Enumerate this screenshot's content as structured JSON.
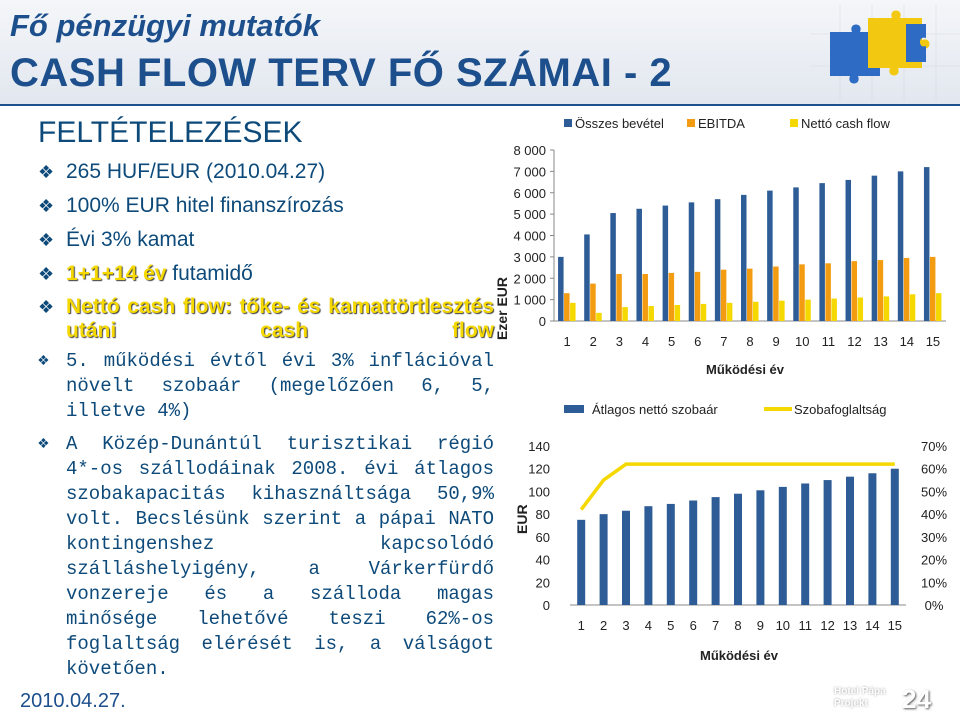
{
  "header": {
    "subtitle": "Fő pénzügyi mutatók",
    "title": "CASH FLOW TERV FŐ SZÁMAI - 2"
  },
  "left": {
    "section_head": "FELTÉTELEZÉSEK",
    "bullets": {
      "b1": "265 HUF/EUR (2010.04.27)",
      "b2": "100% EUR hitel finanszírozás",
      "b3": "Évi 3% kamat",
      "b4_highlight": "1+1+14 év",
      "b4_rest": " futamidő",
      "b5": "Nettó cash flow: tőke- és kamattörtlesztés utáni cash flow",
      "b6": "5. működési évtől évi 3% inflációval növelt szobaár (megelőzően 6, 5, illetve 4%)",
      "b7": "A Közép-Dunántúl turisztikai régió 4*-os szállodáinak 2008. évi átlagos szobakapacitás kihasználtsága 50,9% volt. Becslésünk szerint a pápai NATO kontingenshez kapcsolódó szálláshelyigény, a Várkerfürdő vonzereje és a szálloda magas minősége lehetővé teszi 62%-os foglaltság elérését is, a válságot követően."
    }
  },
  "footer": {
    "date": "2010.04.27.",
    "logo_line1": "Hotel Pápa",
    "logo_line2": "Projekt",
    "page": "24"
  },
  "colors": {
    "title_blue": "#1c4f8c",
    "text_blue": "#0d4a7a",
    "bar_blue": "#2e5c96",
    "ebitda_orange": "#f39c12",
    "ncf_yellow": "#f5d800"
  },
  "chart_data": [
    {
      "type": "bar",
      "ylabel": "Ezer EUR",
      "xlabel": "Működési év",
      "categories": [
        "1",
        "2",
        "3",
        "4",
        "5",
        "6",
        "7",
        "8",
        "9",
        "10",
        "11",
        "12",
        "13",
        "14",
        "15"
      ],
      "yticks": [
        "0",
        "1 000",
        "2 000",
        "3 000",
        "4 000",
        "5 000",
        "6 000",
        "7 000",
        "8 000"
      ],
      "ylim": [
        0,
        8000
      ],
      "legend_position": "top",
      "series": [
        {
          "name": "Összes bevétel",
          "color": "#2e5c96",
          "values": [
            3000,
            4050,
            5050,
            5250,
            5400,
            5550,
            5700,
            5900,
            6100,
            6250,
            6450,
            6600,
            6800,
            7000,
            7200
          ]
        },
        {
          "name": "EBITDA",
          "color": "#f39c12",
          "values": [
            1300,
            1750,
            2200,
            2200,
            2250,
            2300,
            2400,
            2450,
            2550,
            2650,
            2700,
            2800,
            2850,
            2950,
            3000
          ]
        },
        {
          "name": "Nettó cash flow",
          "color": "#f5d800",
          "values": [
            850,
            380,
            650,
            700,
            750,
            800,
            850,
            900,
            950,
            1000,
            1050,
            1100,
            1150,
            1250,
            1300
          ]
        }
      ]
    },
    {
      "type": "bar+line",
      "ylabel": "EUR",
      "xlabel": "Működési év",
      "categories": [
        "1",
        "2",
        "3",
        "4",
        "5",
        "6",
        "7",
        "8",
        "9",
        "10",
        "11",
        "12",
        "13",
        "14",
        "15"
      ],
      "yticks_left": [
        "0",
        "20",
        "40",
        "60",
        "80",
        "100",
        "120",
        "140"
      ],
      "yticks_right": [
        "0%",
        "10%",
        "20%",
        "30%",
        "40%",
        "50%",
        "60%",
        "70%"
      ],
      "ylim_left": [
        0,
        140
      ],
      "ylim_right": [
        0,
        70
      ],
      "legend_position": "top",
      "series": [
        {
          "name": "Átlagos nettó szobaár",
          "type": "bar",
          "axis": "left",
          "color": "#2e5c96",
          "values": [
            75,
            80,
            83,
            87,
            89,
            92,
            95,
            98,
            101,
            104,
            107,
            110,
            113,
            116,
            120
          ]
        },
        {
          "name": "Szobafoglaltság",
          "type": "line",
          "axis": "right",
          "color": "#f5d800",
          "values": [
            42,
            55,
            62,
            62,
            62,
            62,
            62,
            62,
            62,
            62,
            62,
            62,
            62,
            62,
            62
          ]
        }
      ]
    }
  ]
}
